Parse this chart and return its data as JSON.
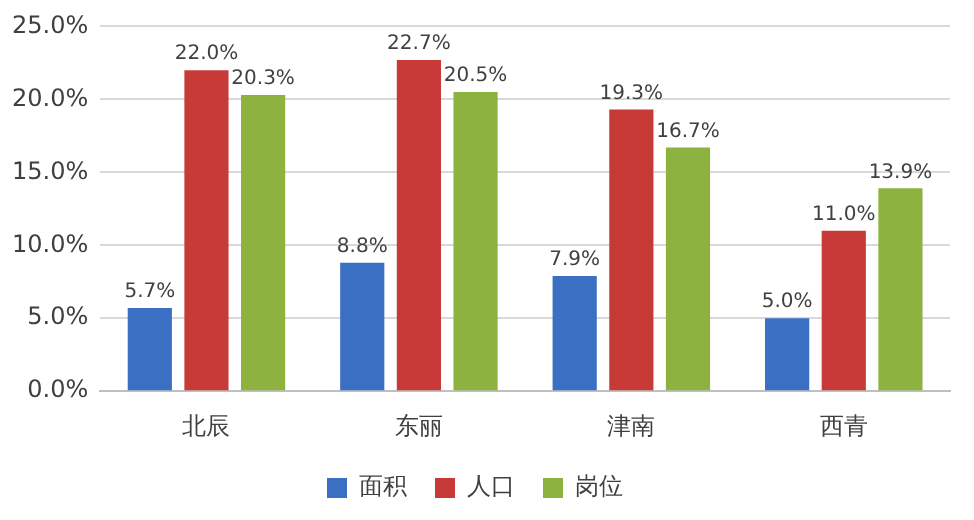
{
  "chart_data": {
    "type": "bar",
    "categories": [
      "北辰",
      "东丽",
      "津南",
      "西青"
    ],
    "series": [
      {
        "name": "面积",
        "color": "#3a6fc4",
        "values": [
          5.7,
          8.8,
          7.9,
          5.0
        ],
        "value_labels": [
          "5.7%",
          "8.8%",
          "7.9%",
          "5.0%"
        ]
      },
      {
        "name": "人口",
        "color": "#c83a37",
        "values": [
          22.0,
          22.7,
          19.3,
          11.0
        ],
        "value_labels": [
          "22.0%",
          "22.7%",
          "19.3%",
          "11.0%"
        ]
      },
      {
        "name": "岗位",
        "color": "#8db23f",
        "values": [
          20.3,
          20.5,
          16.7,
          13.9
        ],
        "value_labels": [
          "20.3%",
          "20.5%",
          "16.7%",
          "13.9%"
        ]
      }
    ],
    "ylim": [
      0,
      25
    ],
    "yticks": [
      {
        "value": 0,
        "label": "0.0%"
      },
      {
        "value": 5,
        "label": "5.0%"
      },
      {
        "value": 10,
        "label": "10.0%"
      },
      {
        "value": 15,
        "label": "15.0%"
      },
      {
        "value": 20,
        "label": "20.0%"
      },
      {
        "value": 25,
        "label": "25.0%"
      }
    ],
    "grid": "y",
    "legend": "bottom"
  }
}
